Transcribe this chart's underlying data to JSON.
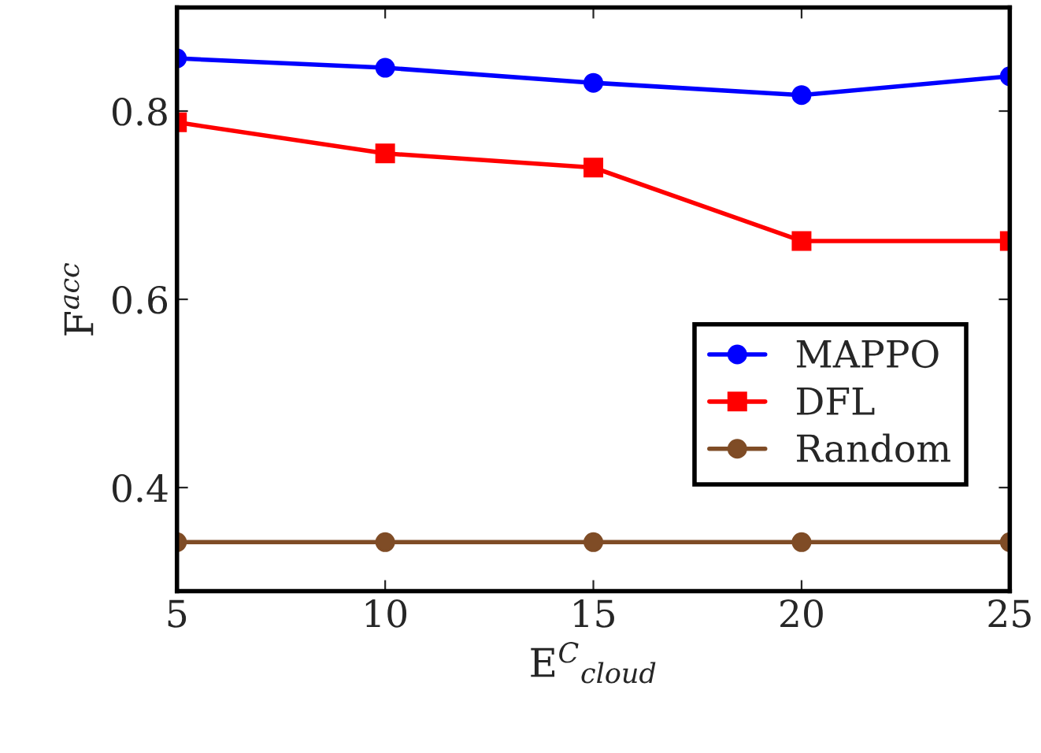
{
  "chart_data": {
    "type": "line",
    "xlabel": "E$^{C}$$_{cloud}$",
    "ylabel": "F$^{acc}$",
    "x": [
      5,
      10,
      15,
      20,
      25
    ],
    "xlim": [
      5,
      25
    ],
    "xticks": [
      5,
      10,
      15,
      20,
      25
    ],
    "ylim": [
      0.29,
      0.91
    ],
    "yticks": [
      0.4,
      0.6,
      0.8
    ],
    "grid": false,
    "legend": "right",
    "series": [
      {
        "name": "MAPPO",
        "color": "#0000ff",
        "marker": "circle",
        "values": [
          0.856,
          0.846,
          0.83,
          0.817,
          0.837
        ]
      },
      {
        "name": "DFL",
        "color": "#ff0000",
        "marker": "square",
        "values": [
          0.788,
          0.755,
          0.74,
          0.662,
          0.662
        ]
      },
      {
        "name": "Random",
        "color": "#7f4c26",
        "marker": "circle",
        "values": [
          0.342,
          0.342,
          0.342,
          0.342,
          0.342
        ]
      }
    ]
  }
}
